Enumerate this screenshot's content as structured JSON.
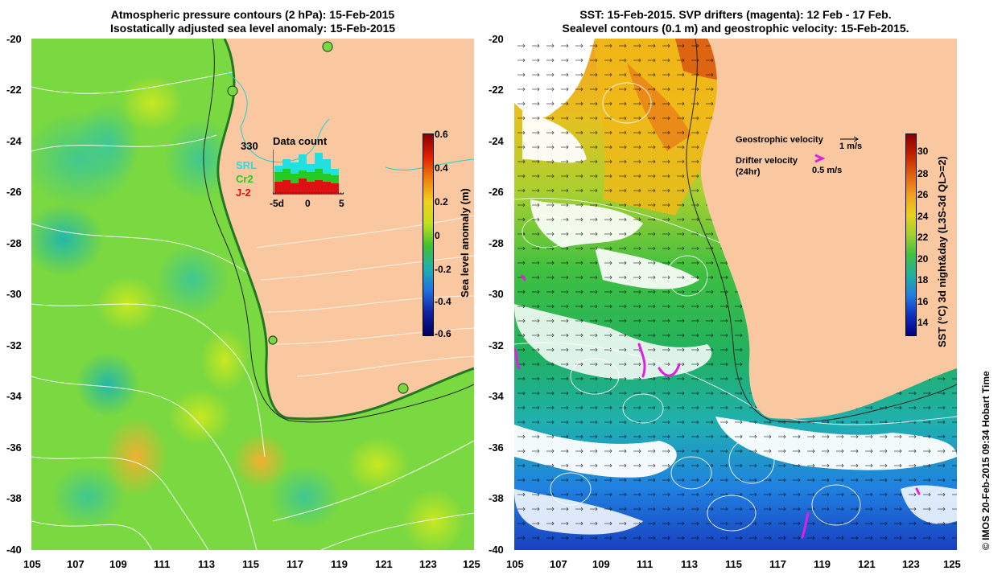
{
  "left_panel": {
    "title_line1": "Atmospheric pressure contours (2 hPa): 15-Feb-2015",
    "title_line2": "Isostatically adjusted sea level anomaly: 15-Feb-2015",
    "lat_ticks": [
      "-20",
      "-22",
      "-24",
      "-26",
      "-28",
      "-30",
      "-32",
      "-34",
      "-36",
      "-38",
      "-40"
    ],
    "lon_ticks": [
      "105",
      "107",
      "109",
      "111",
      "113",
      "115",
      "117",
      "119",
      "121",
      "123",
      "125"
    ],
    "colorbar": {
      "label": "Sea level anomaly (m)",
      "ticks": [
        "0.6",
        "0.4",
        "0.2",
        "0",
        "-0.2",
        "-0.4",
        "-0.6"
      ]
    },
    "data_count": {
      "title": "Data count",
      "max_label": "330",
      "series": [
        "SRL",
        "Cr2",
        "J-2"
      ],
      "series_colors": [
        "#22e0e0",
        "#22cc22",
        "#dd1111"
      ],
      "x_ticks": [
        "-5d",
        "0",
        "5"
      ]
    }
  },
  "right_panel": {
    "title_line1": "SST: 15-Feb-2015. SVP drifters (magenta): 12 Feb - 17 Feb.",
    "title_line2": "Sealevel contours (0.1 m) and geostrophic velocity: 15-Feb-2015.",
    "lat_ticks": [
      "-20",
      "-22",
      "-24",
      "-26",
      "-28",
      "-30",
      "-32",
      "-34",
      "-36",
      "-38",
      "-40"
    ],
    "lon_ticks": [
      "105",
      "107",
      "109",
      "111",
      "113",
      "115",
      "117",
      "119",
      "121",
      "123",
      "125"
    ],
    "colorbar": {
      "label": "SST (°C) 3d night&day (L3S-3d QL>=2)",
      "ticks": [
        "30",
        "28",
        "26",
        "24",
        "22",
        "20",
        "18",
        "16",
        "14"
      ]
    },
    "legend": {
      "geostrophic_label": "Geostrophic velocity",
      "geostrophic_scale": "1 m/s",
      "drifter_label": "Drifter velocity",
      "drifter_sub": "(24hr)",
      "drifter_scale": "0.5 m/s"
    }
  },
  "credit": "© IMOS 20-Feb-2015 09:34 Hobart Time",
  "colors": {
    "land": "#f9c8a0",
    "drifter": "#e020e0"
  }
}
